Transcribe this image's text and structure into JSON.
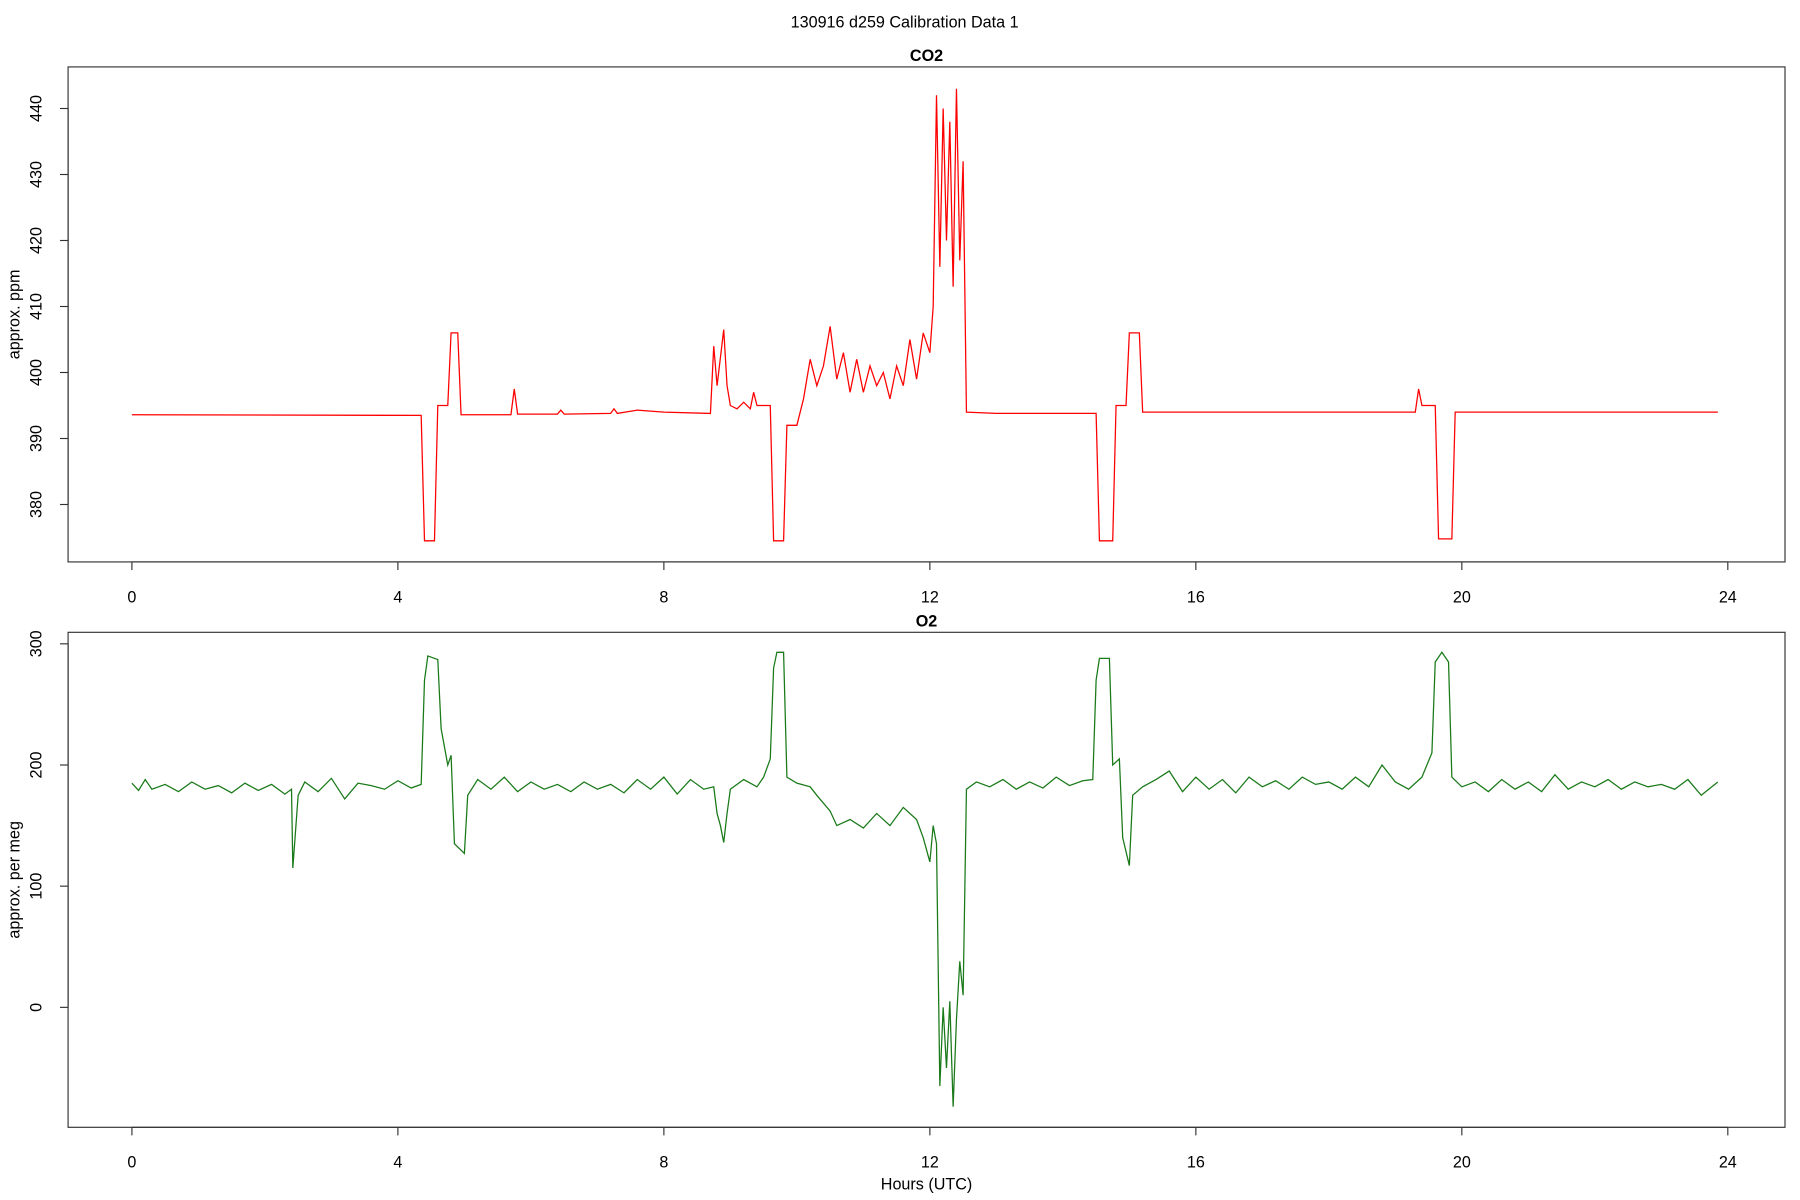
{
  "title": "130916   d259   Calibration Data 1",
  "chart_data": [
    {
      "type": "line",
      "title": "CO2",
      "y_label": "approx. ppm",
      "color": "#ff0000",
      "xlim": [
        -0.96,
        24.86
      ],
      "xticks": [
        0,
        4,
        8,
        12,
        16,
        20,
        24
      ],
      "ylim": [
        371.3,
        446.3
      ],
      "yticks": [
        380,
        390,
        400,
        410,
        420,
        430,
        440
      ],
      "x": [
        0,
        4.35,
        4.4,
        4.55,
        4.6,
        4.75,
        4.8,
        4.9,
        4.95,
        5.7,
        5.75,
        5.8,
        6.4,
        6.45,
        6.5,
        7.2,
        7.25,
        7.3,
        7.6,
        8.0,
        8.7,
        8.75,
        8.8,
        8.9,
        8.95,
        9.0,
        9.1,
        9.2,
        9.3,
        9.35,
        9.4,
        9.6,
        9.65,
        9.8,
        9.85,
        10.0,
        10.1,
        10.2,
        10.3,
        10.4,
        10.5,
        10.6,
        10.7,
        10.8,
        10.9,
        11.0,
        11.1,
        11.2,
        11.3,
        11.4,
        11.5,
        11.6,
        11.7,
        11.8,
        11.9,
        12.0,
        12.05,
        12.1,
        12.15,
        12.2,
        12.25,
        12.3,
        12.35,
        12.4,
        12.45,
        12.5,
        12.55,
        13.0,
        14.5,
        14.55,
        14.75,
        14.8,
        14.95,
        15.0,
        15.15,
        15.2,
        19.3,
        19.35,
        19.4,
        19.6,
        19.65,
        19.85,
        19.9,
        23.85
      ],
      "values": [
        393.6,
        393.5,
        374.5,
        374.5,
        395,
        395,
        406,
        406,
        393.6,
        393.6,
        397.5,
        393.7,
        393.7,
        394.3,
        393.7,
        393.8,
        394.5,
        393.8,
        394.3,
        394,
        393.8,
        404,
        398,
        406.5,
        398,
        395,
        394.5,
        395.5,
        394.5,
        397,
        395,
        395,
        374.5,
        374.5,
        392,
        392,
        396,
        402,
        398,
        401,
        407,
        399,
        403,
        397,
        402,
        397,
        401,
        398,
        400,
        396,
        401,
        398,
        405,
        399,
        406,
        403,
        410,
        442,
        416,
        440,
        420,
        438,
        413,
        443,
        417,
        432,
        394,
        393.8,
        393.8,
        374.5,
        374.5,
        395,
        395,
        406,
        406,
        394,
        394,
        397.5,
        395,
        395,
        374.8,
        374.8,
        394,
        394
      ]
    },
    {
      "type": "line",
      "title": "O2",
      "y_label": "approx. per meg",
      "x_label": "Hours (UTC)",
      "color": "#1a7a1a",
      "xlim": [
        -0.96,
        24.86
      ],
      "xticks": [
        0,
        4,
        8,
        12,
        16,
        20,
        24
      ],
      "ylim": [
        -99,
        309.5
      ],
      "yticks": [
        0,
        100,
        200,
        300
      ],
      "x": [
        0,
        0.1,
        0.2,
        0.3,
        0.5,
        0.7,
        0.9,
        1.1,
        1.3,
        1.5,
        1.7,
        1.9,
        2.1,
        2.3,
        2.4,
        2.42,
        2.5,
        2.6,
        2.8,
        3.0,
        3.2,
        3.4,
        3.6,
        3.8,
        4.0,
        4.2,
        4.35,
        4.4,
        4.45,
        4.6,
        4.65,
        4.75,
        4.8,
        4.85,
        5.0,
        5.05,
        5.2,
        5.4,
        5.6,
        5.8,
        6.0,
        6.2,
        6.4,
        6.6,
        6.8,
        7.0,
        7.2,
        7.4,
        7.6,
        7.8,
        8.0,
        8.2,
        8.4,
        8.6,
        8.75,
        8.8,
        8.85,
        8.9,
        8.95,
        9.0,
        9.2,
        9.4,
        9.5,
        9.6,
        9.65,
        9.7,
        9.8,
        9.85,
        10.0,
        10.2,
        10.3,
        10.5,
        10.6,
        10.8,
        11.0,
        11.2,
        11.4,
        11.6,
        11.8,
        11.9,
        12.0,
        12.05,
        12.1,
        12.15,
        12.2,
        12.25,
        12.3,
        12.35,
        12.4,
        12.45,
        12.5,
        12.55,
        12.7,
        12.9,
        13.1,
        13.3,
        13.5,
        13.7,
        13.9,
        14.1,
        14.3,
        14.45,
        14.5,
        14.55,
        14.7,
        14.75,
        14.85,
        14.9,
        15.0,
        15.05,
        15.2,
        15.4,
        15.6,
        15.8,
        16.0,
        16.2,
        16.4,
        16.6,
        16.8,
        17.0,
        17.2,
        17.4,
        17.6,
        17.8,
        18.0,
        18.2,
        18.4,
        18.6,
        18.8,
        19.0,
        19.2,
        19.4,
        19.55,
        19.6,
        19.7,
        19.8,
        19.85,
        20.0,
        20.2,
        20.4,
        20.6,
        20.8,
        21.0,
        21.2,
        21.4,
        21.6,
        21.8,
        22.0,
        22.2,
        22.4,
        22.6,
        22.8,
        23.0,
        23.2,
        23.4,
        23.6,
        23.85
      ],
      "values": [
        185,
        179,
        188,
        180,
        184,
        178,
        186,
        180,
        183,
        177,
        185,
        179,
        184,
        176,
        180,
        115,
        175,
        186,
        178,
        189,
        172,
        185,
        183,
        180,
        187,
        181,
        184,
        270,
        290,
        287,
        230,
        200,
        208,
        135,
        127,
        175,
        188,
        180,
        190,
        178,
        186,
        180,
        184,
        178,
        186,
        180,
        184,
        177,
        188,
        180,
        190,
        176,
        188,
        180,
        182,
        160,
        150,
        136,
        160,
        180,
        188,
        182,
        190,
        205,
        280,
        293,
        293,
        190,
        185,
        182,
        175,
        162,
        150,
        155,
        148,
        160,
        150,
        165,
        155,
        140,
        120,
        150,
        135,
        -65,
        0,
        -50,
        5,
        -82,
        -10,
        38,
        10,
        180,
        186,
        182,
        188,
        180,
        186,
        181,
        190,
        183,
        187,
        188,
        270,
        288,
        288,
        200,
        205,
        140,
        117,
        175,
        182,
        188,
        195,
        178,
        190,
        180,
        188,
        177,
        190,
        182,
        187,
        180,
        190,
        184,
        186,
        180,
        190,
        182,
        200,
        186,
        180,
        190,
        210,
        285,
        293,
        285,
        190,
        182,
        186,
        178,
        188,
        180,
        186,
        178,
        192,
        180,
        186,
        182,
        188,
        180,
        186,
        182,
        184,
        180,
        188,
        175,
        186
      ]
    }
  ]
}
